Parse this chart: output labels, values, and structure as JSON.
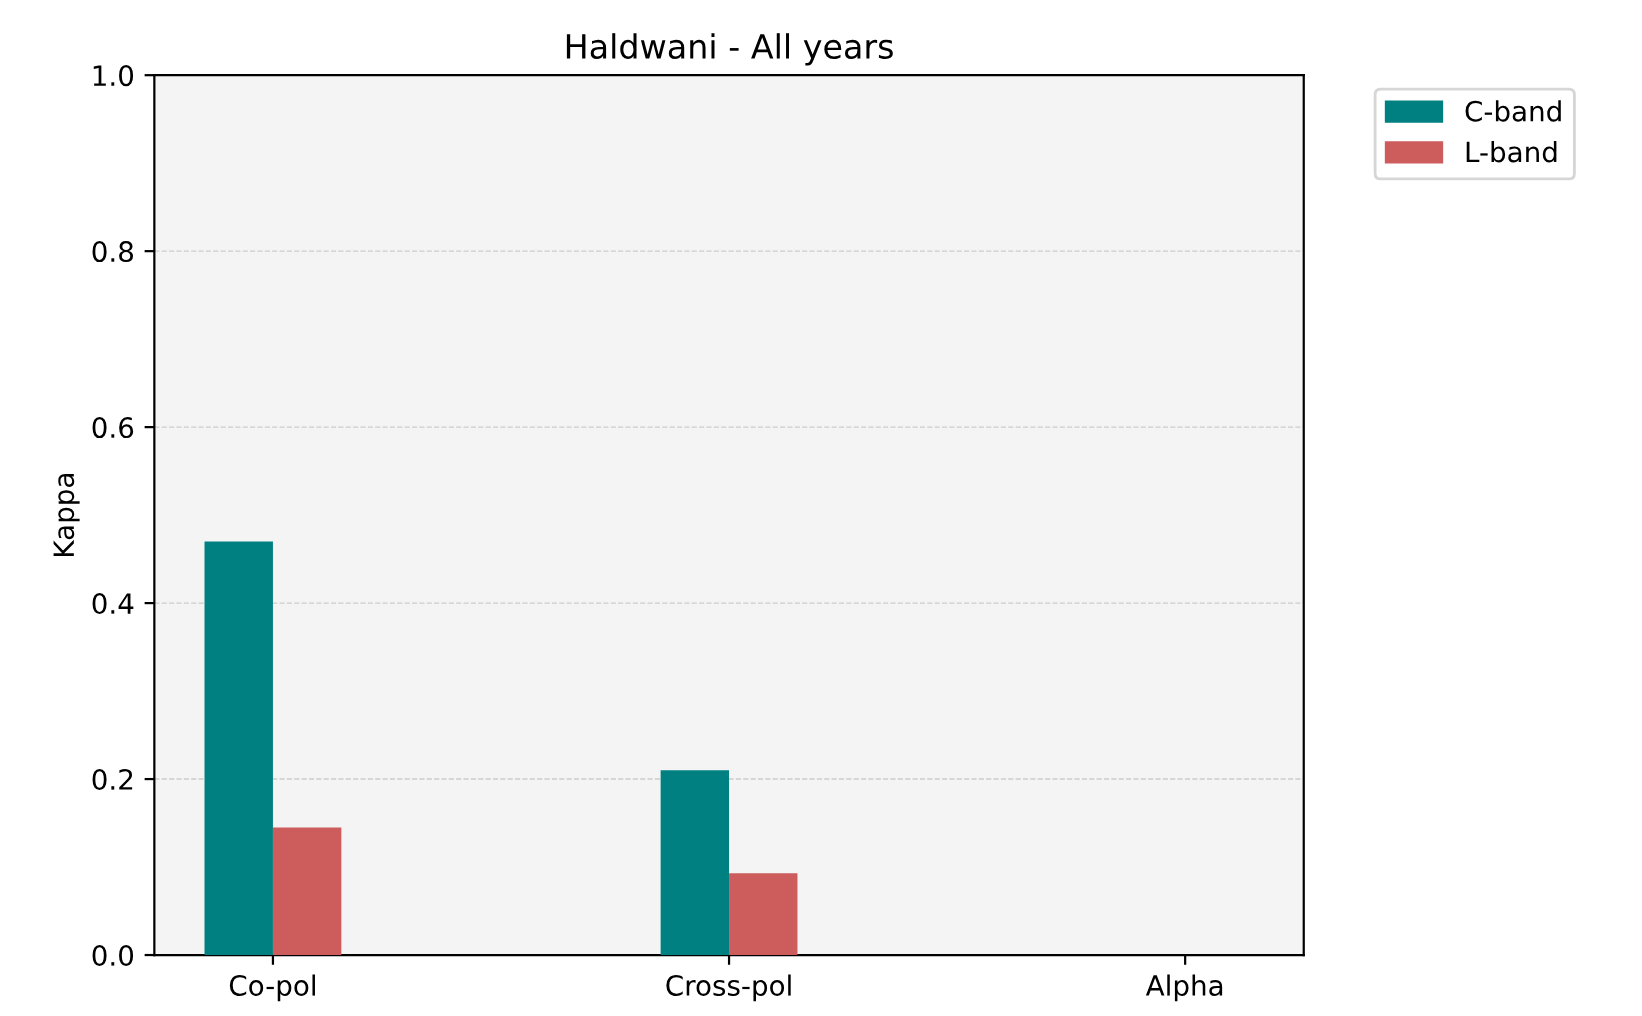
{
  "chart_data": {
    "type": "bar",
    "title": "Haldwani - All years",
    "ylabel": "Kappa",
    "categories": [
      "Co-pol",
      "Cross-pol",
      "Alpha"
    ],
    "series": [
      {
        "name": "C-band",
        "color": "#008080",
        "values": [
          0.47,
          0.21,
          null
        ]
      },
      {
        "name": "L-band",
        "color": "#cd5c5c",
        "values": [
          0.145,
          0.093,
          null
        ]
      }
    ],
    "ylim": [
      0,
      1
    ],
    "yticks": [
      {
        "value": 0,
        "label": "0.0"
      },
      0.2,
      0.4,
      0.6,
      0.8,
      {
        "value": 1,
        "label": "1.0"
      }
    ],
    "grid": "y",
    "legend": "top right"
  }
}
